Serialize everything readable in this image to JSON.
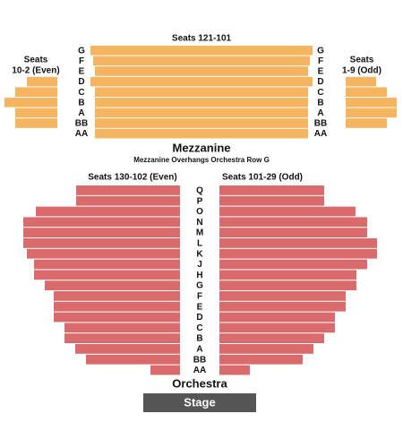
{
  "mezzanine": {
    "center_label": "Seats 121-101",
    "left_label": [
      "Seats",
      "10-2 (Even)"
    ],
    "right_label": [
      "Seats",
      "1-9 (Odd)"
    ],
    "rows": [
      "G",
      "F",
      "E",
      "D",
      "C",
      "B",
      "A",
      "BB",
      "AA"
    ],
    "title": "Mezzanine",
    "note": "Mezzanine Overhangs Orchestra Row G"
  },
  "orchestra": {
    "left_label": "Seats 130-102 (Even)",
    "right_label": "Seats 101-29 (Odd)",
    "rows": [
      "Q",
      "P",
      "O",
      "N",
      "M",
      "L",
      "K",
      "J",
      "H",
      "G",
      "F",
      "E",
      "D",
      "C",
      "B",
      "A",
      "BB",
      "AA"
    ],
    "title": "Orchestra"
  },
  "stage": "Stage"
}
